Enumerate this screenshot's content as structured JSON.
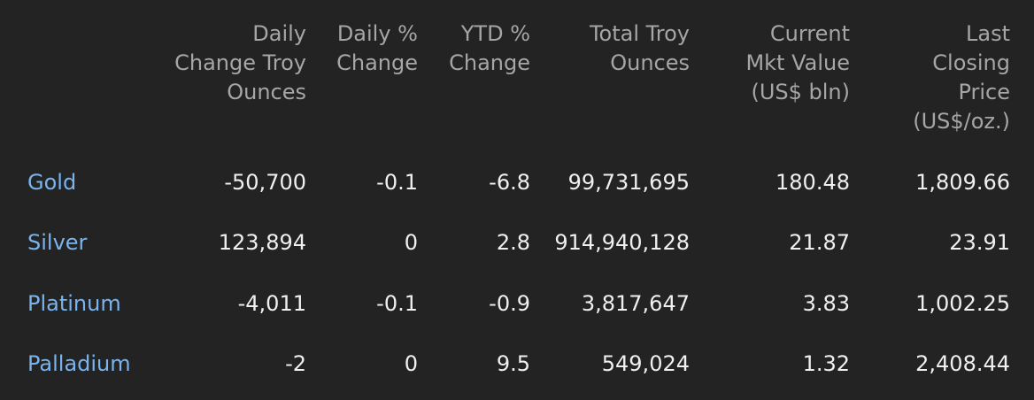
{
  "table": {
    "headers": [
      [
        "Daily",
        "Change Troy",
        "Ounces"
      ],
      [
        "Daily %",
        "Change"
      ],
      [
        "YTD %",
        "Change"
      ],
      [
        "Total Troy",
        "Ounces"
      ],
      [
        "Current",
        "Mkt Value",
        "(US$ bln)"
      ],
      [
        "Last",
        "Closing",
        "Price",
        "(US$/oz.)"
      ]
    ],
    "rows": [
      {
        "metal": "Gold",
        "daily_change": "-50,700",
        "daily_pct": "-0.1",
        "ytd_pct": "-6.8",
        "total_oz": "99,731,695",
        "mkt_value": "180.48",
        "last_price": "1,809.66"
      },
      {
        "metal": "Silver",
        "daily_change": "123,894",
        "daily_pct": "0",
        "ytd_pct": "2.8",
        "total_oz": "914,940,128",
        "mkt_value": "21.87",
        "last_price": "23.91"
      },
      {
        "metal": "Platinum",
        "daily_change": "-4,011",
        "daily_pct": "-0.1",
        "ytd_pct": "-0.9",
        "total_oz": "3,817,647",
        "mkt_value": "3.83",
        "last_price": "1,002.25"
      },
      {
        "metal": "Palladium",
        "daily_change": "-2",
        "daily_pct": "0",
        "ytd_pct": "9.5",
        "total_oz": "549,024",
        "mkt_value": "1.32",
        "last_price": "2,408.44"
      }
    ]
  },
  "colors": {
    "background": "#232323",
    "header_text": "#a6a6a6",
    "metal_link": "#7ab4ee",
    "value_text": "#f0f0f0"
  }
}
